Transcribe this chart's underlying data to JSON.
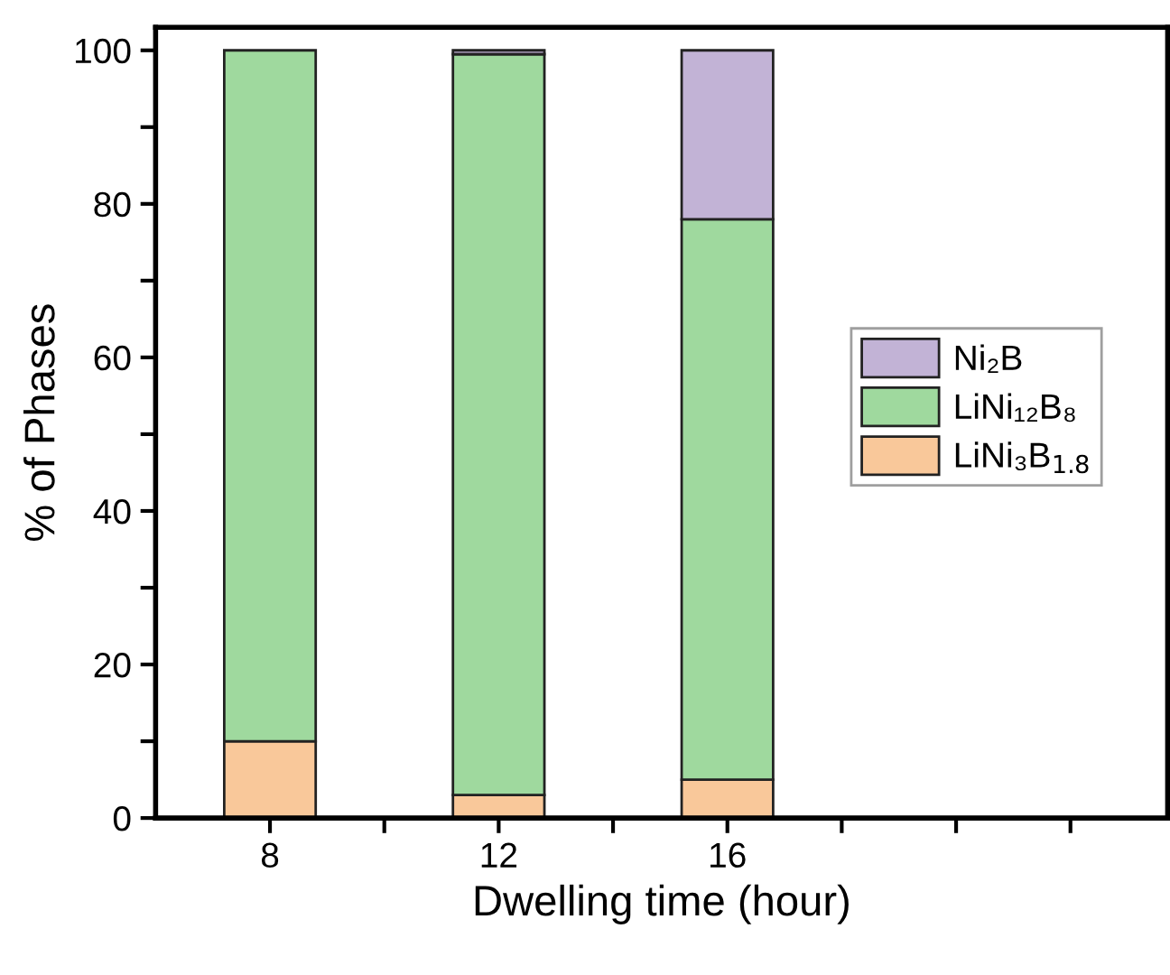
{
  "chart_data": {
    "type": "bar",
    "stacked": true,
    "xlabel": "Dwelling time (hour)",
    "ylabel": "% of Phases",
    "x": [
      8,
      12,
      16
    ],
    "series": [
      {
        "name": "LiNi₃B$_{1.8}$",
        "color": "#f9c89a",
        "values": [
          10,
          3,
          5
        ]
      },
      {
        "name": "LiNi₁₂B₈",
        "color": "#9fd99e",
        "values": [
          90,
          96.5,
          73
        ]
      },
      {
        "name": "Ni₂B",
        "color": "#c2b3d6",
        "values": [
          null,
          0.5,
          22
        ]
      }
    ],
    "xlim": [
      6,
      23.7
    ],
    "xticks": [
      8,
      {
        "value": 10,
        "label": null
      },
      12,
      {
        "value": 14,
        "label": null
      },
      16,
      {
        "value": 18,
        "label": null
      },
      {
        "value": 20,
        "label": null
      },
      {
        "value": 22,
        "label": null
      }
    ],
    "ylim": [
      0,
      103
    ],
    "yticks": [
      0,
      {
        "value": 10,
        "label": null
      },
      20,
      {
        "value": 30,
        "label": null
      },
      40,
      {
        "value": 50,
        "label": null
      },
      60,
      {
        "value": 70,
        "label": null
      },
      80,
      {
        "value": 90,
        "label": null
      },
      100
    ],
    "grid": false,
    "legend": "right"
  }
}
